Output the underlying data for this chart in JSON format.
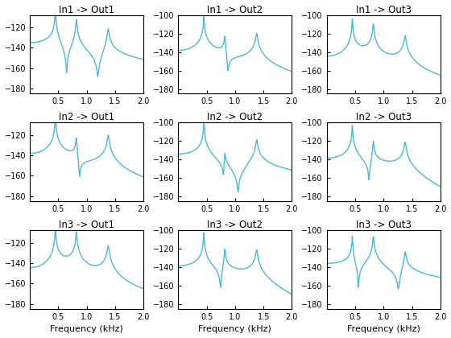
{
  "titles": [
    [
      "In1 -> Out1",
      "In1 -> Out2",
      "In1 -> Out3"
    ],
    [
      "In2 -> Out1",
      "In2 -> Out2",
      "In2 -> Out3"
    ],
    [
      "In3 -> Out1",
      "In3 -> Out2",
      "In3 -> Out3"
    ]
  ],
  "xlabels": [
    [
      "",
      "",
      ""
    ],
    [
      "",
      "",
      ""
    ],
    [
      "Frequency (kHz)",
      "Frequency (kHz)",
      "Frequency (kHz)"
    ]
  ],
  "ylims_col1": [
    -185,
    -108
  ],
  "ylims_col23": [
    -185,
    -100
  ],
  "line_color": "#4cb8d4",
  "line_width": 1.0,
  "resonances": [
    0.45,
    0.82,
    1.38
  ],
  "modal_damping": 0.008,
  "background_color": "#ffffff",
  "title_fontsize": 8.5,
  "tick_fontsize": 7,
  "xlabel_fontsize": 8,
  "figsize": [
    5.6,
    4.2
  ],
  "dpi": 100
}
